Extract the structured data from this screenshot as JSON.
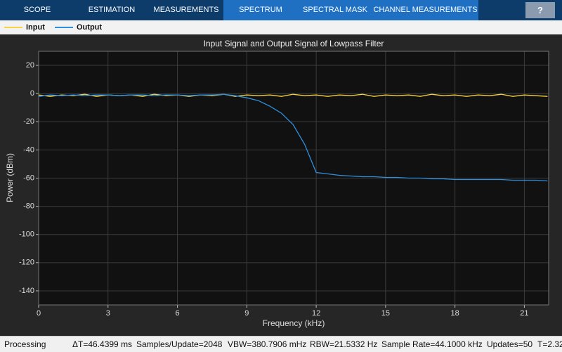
{
  "toolbar": {
    "tabs": [
      "SCOPE",
      "ESTIMATION",
      "MEASUREMENTS",
      "SPECTRUM",
      "SPECTRAL MASK",
      "CHANNEL MEASUREMENTS"
    ],
    "help": "?"
  },
  "chart_data": {
    "type": "line",
    "title": "Input Signal and Output Signal of Lowpass Filter",
    "x_label": "Frequency (kHz)",
    "y_label": "Power (dBm)",
    "x": [
      0,
      0.5,
      1,
      1.5,
      2,
      2.5,
      3,
      3.5,
      4,
      4.5,
      5,
      5.5,
      6,
      6.5,
      7,
      7.5,
      8,
      8.5,
      9,
      9.5,
      10,
      10.5,
      11,
      11.5,
      12,
      12.5,
      13,
      13.5,
      14,
      14.5,
      15,
      15.5,
      16,
      16.5,
      17,
      17.5,
      18,
      18.5,
      19,
      19.5,
      20,
      20.5,
      21,
      21.5,
      22
    ],
    "series": [
      {
        "name": "Input",
        "color": "#f5d547",
        "values": [
          -1,
          -2,
          -1,
          -1.5,
          -0.5,
          -2,
          -1,
          -1.5,
          -1,
          -2,
          -0.5,
          -1.5,
          -1,
          -2,
          -1,
          -1.5,
          -0.5,
          -2,
          -1,
          -1.5,
          -1,
          -2,
          -0.5,
          -1.5,
          -1,
          -2,
          -1,
          -1.5,
          -0.5,
          -2,
          -1,
          -1.5,
          -1,
          -2,
          -0.5,
          -1.5,
          -1,
          -2,
          -1,
          -1.5,
          -0.5,
          -2,
          -1,
          -1.5,
          -2
        ]
      },
      {
        "name": "Output",
        "color": "#2f8fdc",
        "values": [
          -2,
          -1,
          -1.5,
          -1,
          -1.5,
          -1,
          -1,
          -1.5,
          -1,
          -1,
          -1.5,
          -1,
          -1,
          -1.5,
          -1,
          -1,
          -0.5,
          -1.5,
          -3,
          -5,
          -9,
          -14,
          -22,
          -36,
          -56,
          -57,
          -58,
          -58.5,
          -59,
          -59,
          -59.5,
          -59.5,
          -60,
          -60,
          -60.5,
          -60.5,
          -61,
          -61,
          -61,
          -61,
          -61,
          -61.5,
          -61.5,
          -61.5,
          -62
        ]
      }
    ],
    "xlim": [
      0,
      22.05
    ],
    "xticks": [
      0,
      3,
      6,
      9,
      12,
      15,
      18,
      21
    ],
    "ylim": [
      -150,
      30
    ],
    "yticks": [
      20,
      0,
      -20,
      -40,
      -60,
      -80,
      -100,
      -120,
      -140
    ],
    "grid": true
  },
  "status_bar": [
    "Processing",
    "ΔT=46.4399 ms",
    "Samples/Update=2048",
    "VBW=380.7906 mHz",
    "RBW=21.5332 Hz",
    "Sample Rate=44.1000 kHz",
    "Updates=50",
    "T=2.32"
  ]
}
